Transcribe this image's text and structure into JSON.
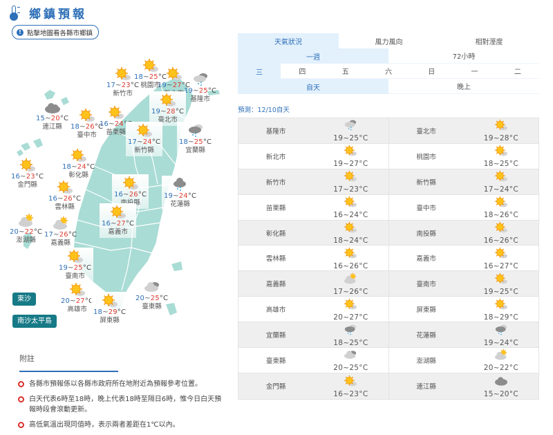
{
  "header": {
    "title": "鄉鎮預報",
    "icon": "thermometer-icon",
    "hint_button": "點擊地圖看各縣市鄉鎮",
    "hint_icon": "info-icon"
  },
  "colors": {
    "accent": "#2d6fb8",
    "low_temp": "#2d6fb8",
    "high_temp": "#e03c31",
    "map_land": "#a9dcd5",
    "island_button": "#177a87",
    "bullet": "#d9302a",
    "tab_active_bg": "#e3f1fd"
  },
  "map": {
    "unit": "°C",
    "locations": [
      {
        "name": "新北市",
        "lo": "19",
        "hi": "27",
        "icon": "sunny"
      },
      {
        "name": "桃園市",
        "lo": "18",
        "hi": "25",
        "icon": "sunny"
      },
      {
        "name": "新竹市",
        "lo": "17",
        "hi": "23",
        "icon": "sunny"
      },
      {
        "name": "基隆市",
        "lo": "19",
        "hi": "25",
        "icon": "cloudy-rain"
      },
      {
        "name": "臺北市",
        "lo": "19",
        "hi": "28",
        "icon": "sunny"
      },
      {
        "name": "連江縣",
        "lo": "15",
        "hi": "20",
        "icon": "cloudy"
      },
      {
        "name": "臺中市",
        "lo": "18",
        "hi": "26",
        "icon": "sunny"
      },
      {
        "name": "苗栗縣",
        "lo": "16",
        "hi": "24",
        "icon": "sunny"
      },
      {
        "name": "新竹縣",
        "lo": "17",
        "hi": "24",
        "icon": "sunny"
      },
      {
        "name": "宜蘭縣",
        "lo": "18",
        "hi": "25",
        "icon": "rain"
      },
      {
        "name": "彰化縣",
        "lo": "18",
        "hi": "24",
        "icon": "sunny"
      },
      {
        "name": "金門縣",
        "lo": "16",
        "hi": "23",
        "icon": "sunny"
      },
      {
        "name": "南投縣",
        "lo": "16",
        "hi": "26",
        "icon": "sunny"
      },
      {
        "name": "花蓮縣",
        "lo": "19",
        "hi": "24",
        "icon": "rain"
      },
      {
        "name": "雲林縣",
        "lo": "16",
        "hi": "26",
        "icon": "sunny"
      },
      {
        "name": "澎湖縣",
        "lo": "20",
        "hi": "22",
        "icon": "partly-cloudy"
      },
      {
        "name": "嘉義縣",
        "lo": "17",
        "hi": "26",
        "icon": "partly-cloudy"
      },
      {
        "name": "嘉義市",
        "lo": "16",
        "hi": "27",
        "icon": "sunny"
      },
      {
        "name": "臺南市",
        "lo": "19",
        "hi": "25",
        "icon": "sunny"
      },
      {
        "name": "高雄市",
        "lo": "20",
        "hi": "27",
        "icon": "sunny"
      },
      {
        "name": "屏東縣",
        "lo": "18",
        "hi": "29",
        "icon": "sunny"
      },
      {
        "name": "臺東縣",
        "lo": "20",
        "hi": "25",
        "icon": "cloudy"
      }
    ],
    "island_buttons": [
      "東沙",
      "南沙太平島"
    ]
  },
  "notes": {
    "title": "附註",
    "items": [
      "各縣市預報係以各縣市政府所在地附近為預報參考位置。",
      "白天代表6時至18時，晚上代表18時至隔日6時，惟今日白天預報時段會滾動更新。",
      "高低氣溫出現同值時，表示兩者差距在1℃以內。"
    ]
  },
  "tabs": {
    "main": [
      "天氣狀況",
      "風力風向",
      "相對溼度"
    ],
    "range": [
      "一週",
      "72小時"
    ],
    "days": [
      "三",
      "四",
      "五",
      "六",
      "日",
      "一",
      "二"
    ],
    "period": [
      "自天",
      "晚上"
    ]
  },
  "forecast_label": "預測：12/10自天",
  "table": {
    "unit": "°C",
    "rows": [
      [
        {
          "name": "基隆市",
          "temp": "19~25",
          "icon": "cloudy-rain"
        },
        {
          "name": "臺北市",
          "temp": "19~28",
          "icon": "sunny"
        }
      ],
      [
        {
          "name": "新北市",
          "temp": "19~27",
          "icon": "sunny"
        },
        {
          "name": "桃園市",
          "temp": "18~25",
          "icon": "sunny"
        }
      ],
      [
        {
          "name": "新竹市",
          "temp": "17~23",
          "icon": "sunny"
        },
        {
          "name": "新竹縣",
          "temp": "17~24",
          "icon": "sunny"
        }
      ],
      [
        {
          "name": "苗栗縣",
          "temp": "16~24",
          "icon": "sunny"
        },
        {
          "name": "臺中市",
          "temp": "18~26",
          "icon": "sunny"
        }
      ],
      [
        {
          "name": "彰化縣",
          "temp": "18~24",
          "icon": "sunny"
        },
        {
          "name": "南投縣",
          "temp": "16~26",
          "icon": "sunny"
        }
      ],
      [
        {
          "name": "雲林縣",
          "temp": "16~26",
          "icon": "sunny"
        },
        {
          "name": "嘉義市",
          "temp": "16~27",
          "icon": "sunny"
        }
      ],
      [
        {
          "name": "嘉義縣",
          "temp": "17~26",
          "icon": "partly-cloudy"
        },
        {
          "name": "臺南市",
          "temp": "19~25",
          "icon": "sunny"
        }
      ],
      [
        {
          "name": "高雄市",
          "temp": "20~27",
          "icon": "sunny"
        },
        {
          "name": "屏東縣",
          "temp": "18~29",
          "icon": "sunny"
        }
      ],
      [
        {
          "name": "宜蘭縣",
          "temp": "18~25",
          "icon": "rain"
        },
        {
          "name": "花蓮縣",
          "temp": "19~24",
          "icon": "rain"
        }
      ],
      [
        {
          "name": "臺東縣",
          "temp": "20~25",
          "icon": "cloudy"
        },
        {
          "name": "澎湖縣",
          "temp": "20~22",
          "icon": "partly-cloudy"
        }
      ],
      [
        {
          "name": "金門縣",
          "temp": "16~23",
          "icon": "sunny"
        },
        {
          "name": "連江縣",
          "temp": "15~20",
          "icon": "cloudy"
        }
      ]
    ]
  }
}
